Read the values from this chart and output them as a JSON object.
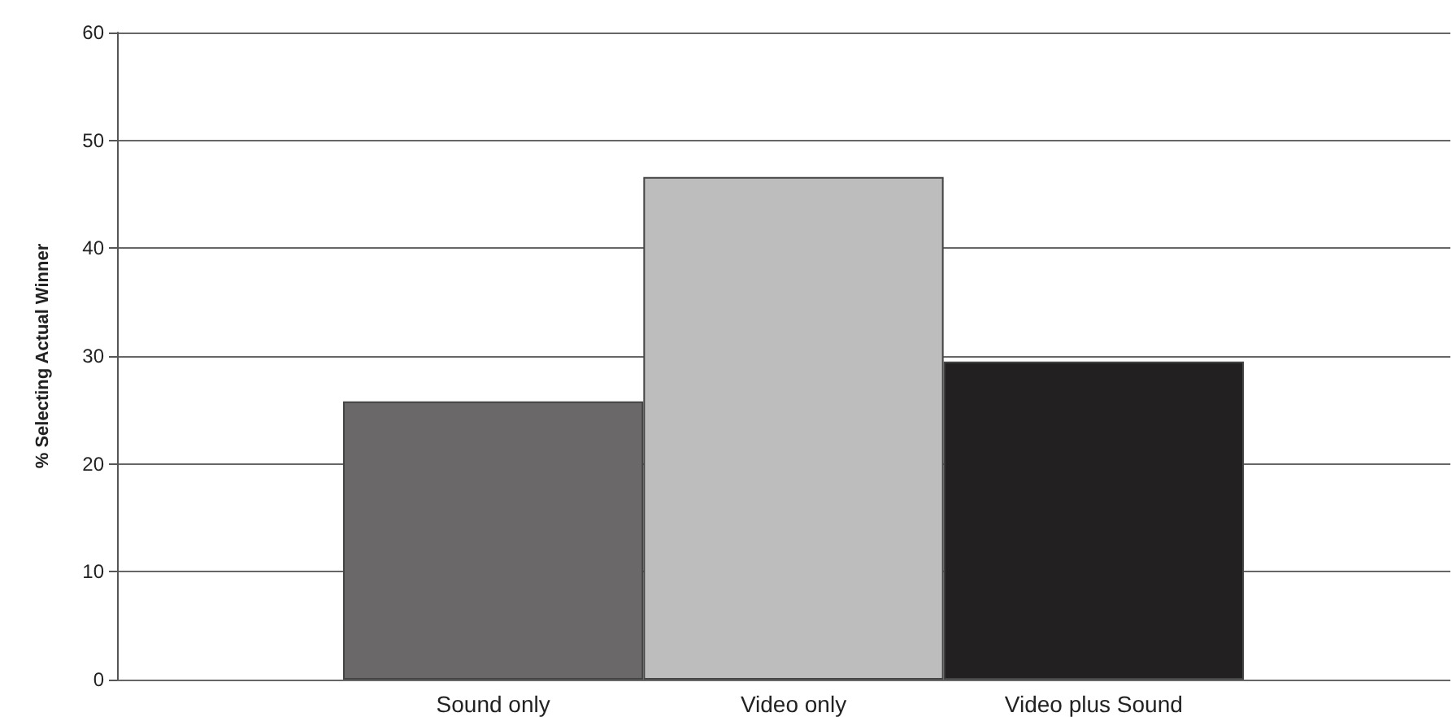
{
  "chart_data": {
    "type": "bar",
    "ylabel": "% Selecting Actual Winner",
    "categories": [
      "Sound only",
      "Video only",
      "Video plus Sound"
    ],
    "values": [
      25.8,
      46.6,
      29.5
    ],
    "colors": [
      "#6a6869",
      "#bdbdbd",
      "#222020"
    ],
    "ylim": [
      0,
      60
    ],
    "yticks": [
      0,
      10,
      20,
      30,
      40,
      50,
      60
    ],
    "grid": "y"
  }
}
